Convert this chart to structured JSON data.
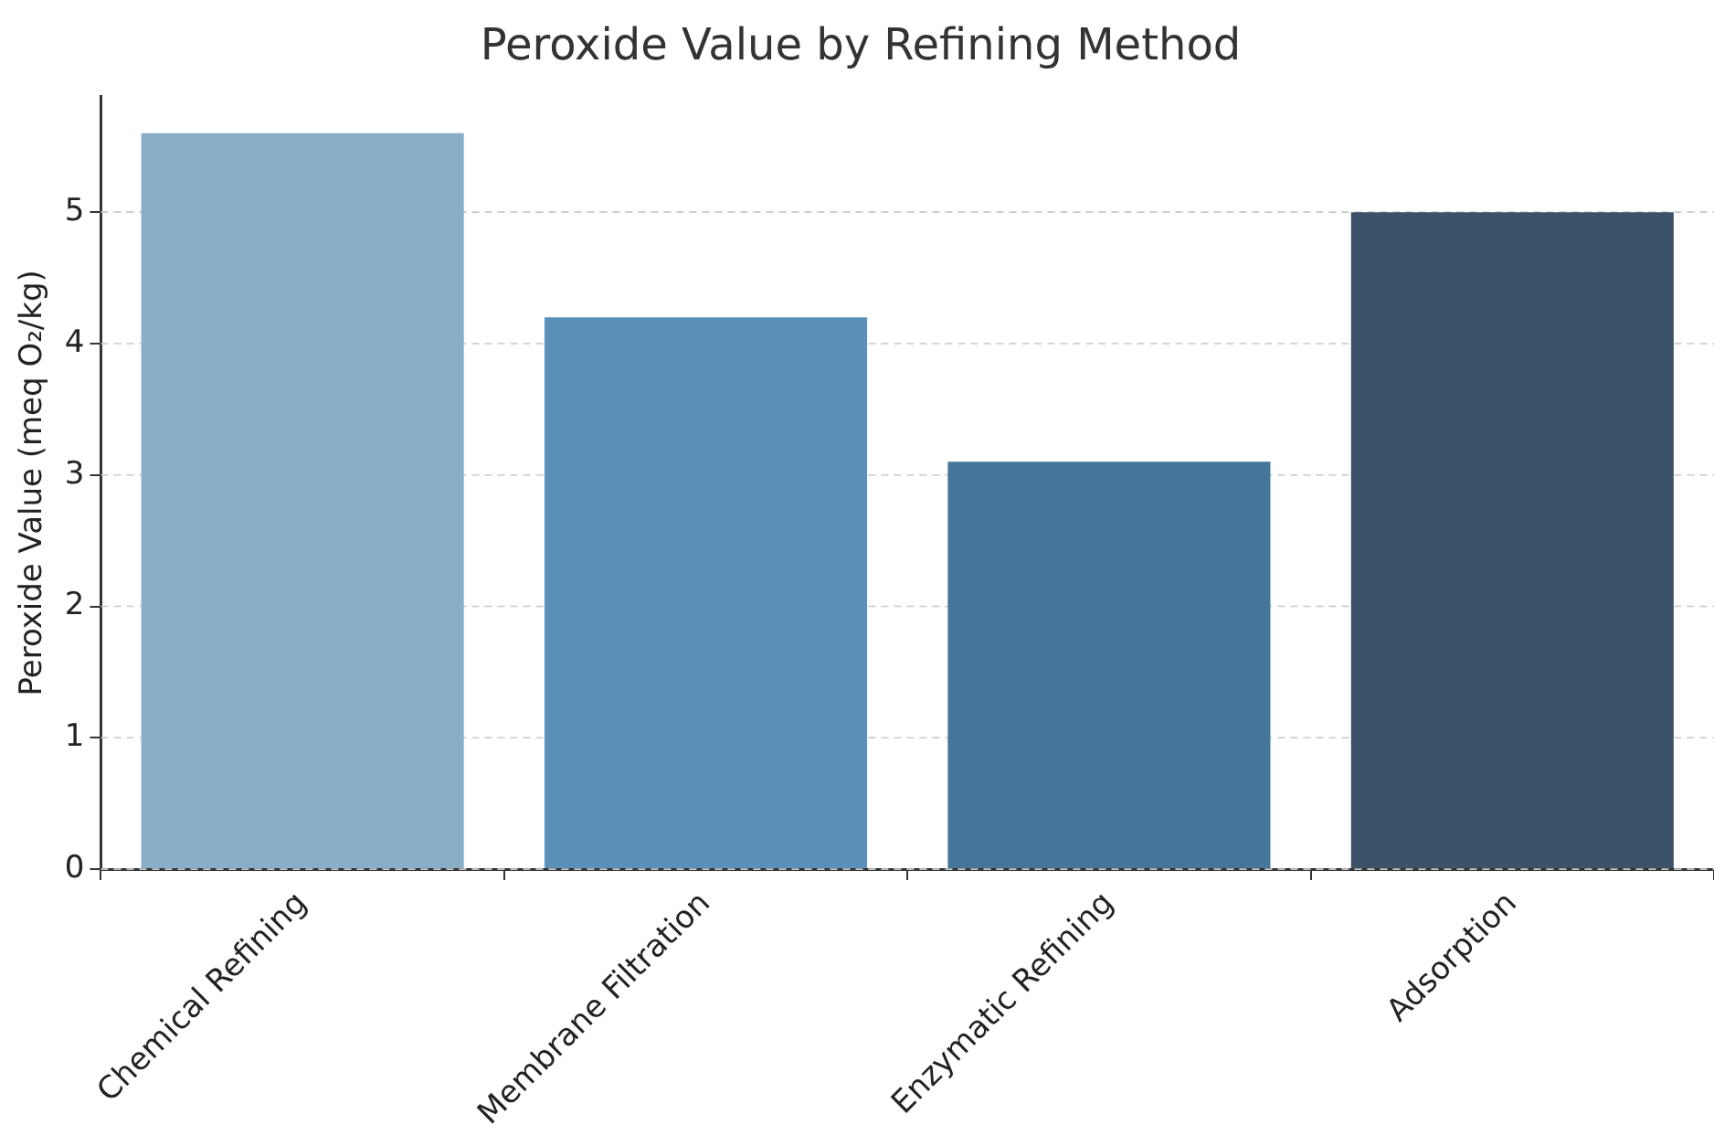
{
  "chart_data": {
    "type": "bar",
    "title": "Peroxide Value by Refining Method",
    "ylabel": "Peroxide Value (meq O₂/kg)",
    "categories": [
      "Chemical Refining",
      "Membrane Filtration",
      "Enzymatic Refining",
      "Adsorption"
    ],
    "values": [
      5.6,
      4.2,
      3.1,
      5.0
    ],
    "colors": [
      "#88aec8",
      "#5b91b8",
      "#45769a",
      "#3b5268"
    ],
    "ylim": [
      0,
      5.88
    ],
    "yticks": [
      0,
      1,
      2,
      3,
      4,
      5
    ],
    "grid": "y",
    "legend": false
  }
}
